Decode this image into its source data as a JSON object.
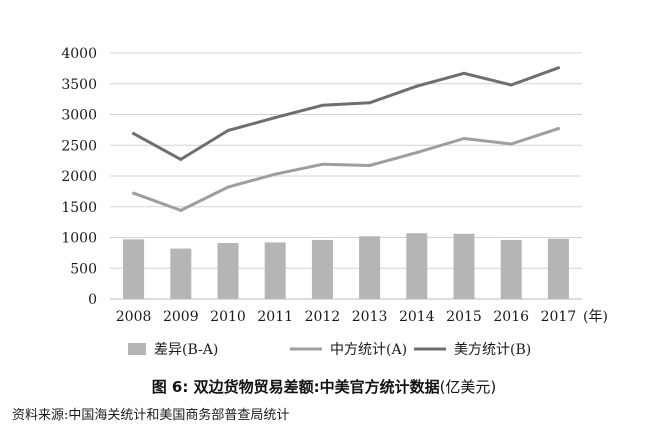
{
  "chart_data": {
    "type": "bar",
    "categories": [
      "2008",
      "2009",
      "2010",
      "2011",
      "2012",
      "2013",
      "2014",
      "2015",
      "2016",
      "2017"
    ],
    "x_unit": "(年)",
    "ylim": [
      0,
      4000
    ],
    "yticks": [
      0,
      500,
      1000,
      1500,
      2000,
      2500,
      3000,
      3500,
      4000
    ],
    "grid": true,
    "legend_position": "bottom",
    "series": [
      {
        "name": "差异(B-A)",
        "kind": "bar",
        "color": "#b5b5b5",
        "values": [
          970,
          820,
          910,
          920,
          960,
          1020,
          1070,
          1060,
          960,
          980
        ]
      },
      {
        "name": "中方统计(A)",
        "kind": "line",
        "color": "#9e9e9e",
        "values": [
          1720,
          1440,
          1820,
          2030,
          2190,
          2170,
          2380,
          2610,
          2520,
          2770
        ]
      },
      {
        "name": "美方统计(B)",
        "kind": "line",
        "color": "#6e6e6e",
        "values": [
          2690,
          2270,
          2740,
          2950,
          3150,
          3190,
          3460,
          3670,
          3480,
          3760
        ]
      }
    ]
  },
  "caption": {
    "title": "图 6: 双边货物贸易差额:中美官方统计数据",
    "unit": "(亿美元)"
  },
  "source": "资料来源:中国海关统计和美国商务部普查局统计"
}
